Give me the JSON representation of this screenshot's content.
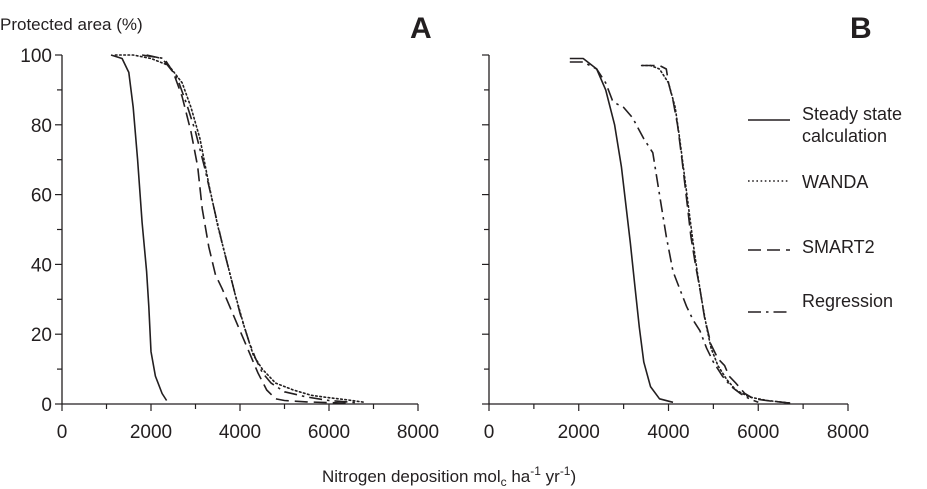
{
  "figure": {
    "ylabel": "Protected area (%)",
    "xlabel_main": "Nitrogen deposition mol",
    "xlabel_sub": "c",
    "xlabel_mid": " ha",
    "xlabel_sup1": "-1",
    "xlabel_mid2": " yr",
    "xlabel_sup2": "-1",
    "xlabel_end": ")"
  },
  "legend": [
    {
      "label_lines": [
        "Steady state",
        "calculation"
      ],
      "style": "solid"
    },
    {
      "label_lines": [
        "WANDA"
      ],
      "style": "dotted"
    },
    {
      "label_lines": [
        "SMART2"
      ],
      "style": "dashed"
    },
    {
      "label_lines": [
        "Regression"
      ],
      "style": "dashdot"
    }
  ],
  "chart_data": [
    {
      "type": "line",
      "panel": "A",
      "xlim": [
        0,
        8000
      ],
      "ylim": [
        0,
        100
      ],
      "xticks": [
        0,
        2000,
        4000,
        6000,
        8000
      ],
      "yticks": [
        0,
        20,
        40,
        60,
        80,
        100
      ],
      "xtick_labels": [
        "0",
        "2000",
        "4000",
        "6000",
        "8000"
      ],
      "ytick_labels": [
        "0",
        "20",
        "40",
        "60",
        "80",
        "100"
      ],
      "series": [
        {
          "name": "Steady state calculation",
          "style": "solid",
          "color": "#231f20",
          "x": [
            1100,
            1350,
            1500,
            1600,
            1700,
            1800,
            1900,
            1950,
            2000,
            2100,
            2250,
            2350
          ],
          "y": [
            100,
            99,
            95,
            85,
            70,
            52,
            38,
            28,
            15,
            8,
            3,
            1
          ]
        },
        {
          "name": "WANDA",
          "style": "dotted",
          "color": "#231f20",
          "x": [
            1200,
            1600,
            2000,
            2400,
            2700,
            2900,
            3100,
            3300,
            3500,
            3700,
            3900,
            4100,
            4300,
            4500,
            4800,
            5200,
            5600,
            6000,
            6400,
            6800
          ],
          "y": [
            100,
            100,
            99,
            97,
            92,
            85,
            76,
            63,
            51,
            41,
            31,
            22,
            14,
            10,
            6,
            4,
            2.5,
            1.8,
            1.2,
            0.5
          ]
        },
        {
          "name": "SMART2",
          "style": "dashed",
          "color": "#231f20",
          "x": [
            1900,
            2250,
            2500,
            2700,
            2900,
            3050,
            3150,
            3300,
            3450,
            3600,
            3800,
            4000,
            4200,
            4400,
            4600,
            4800,
            5000,
            5500,
            6000,
            6500
          ],
          "y": [
            100,
            99,
            95,
            88,
            78,
            68,
            56,
            45,
            37,
            33,
            27,
            21,
            15,
            9,
            4,
            1.5,
            1,
            0.6,
            0.4,
            0.2
          ]
        },
        {
          "name": "Regression",
          "style": "dashdot",
          "color": "#231f20",
          "x": [
            1800,
            2300,
            2600,
            2800,
            3000,
            3200,
            3400,
            3600,
            3800,
            4000,
            4200,
            4350,
            4500,
            4700,
            5000,
            5500,
            6000,
            6600
          ],
          "y": [
            100,
            99,
            93,
            86,
            78,
            68,
            57,
            46,
            36,
            26,
            18,
            13,
            9,
            6,
            3.5,
            2,
            1,
            0.4
          ]
        }
      ]
    },
    {
      "type": "line",
      "panel": "B",
      "xlim": [
        0,
        8000
      ],
      "ylim": [
        0,
        100
      ],
      "xticks": [
        0,
        2000,
        4000,
        6000,
        8000
      ],
      "yticks": [
        0,
        20,
        40,
        60,
        80,
        100
      ],
      "xtick_labels": [
        "0",
        "2000",
        "4000",
        "6000",
        "8000"
      ],
      "ytick_labels": [],
      "series": [
        {
          "name": "Steady state calculation",
          "style": "solid",
          "color": "#231f20",
          "x": [
            1800,
            2100,
            2400,
            2600,
            2800,
            2950,
            3050,
            3150,
            3250,
            3350,
            3450,
            3600,
            3800,
            4100
          ],
          "y": [
            99,
            99,
            96,
            90,
            80,
            68,
            57,
            46,
            34,
            22,
            12,
            5,
            1.5,
            0.5
          ]
        },
        {
          "name": "WANDA",
          "style": "dotted",
          "color": "#231f20",
          "x": [
            3400,
            3600,
            3800,
            4000,
            4150,
            4250,
            4350,
            4450,
            4550,
            4650,
            4750,
            4850,
            4950,
            5100,
            5300,
            5500,
            5800,
            6200,
            6700
          ],
          "y": [
            97,
            97,
            96,
            92,
            85,
            76,
            66,
            56,
            46,
            37,
            29,
            22,
            16,
            11,
            7,
            4,
            2,
            1,
            0.3
          ]
        },
        {
          "name": "SMART2",
          "style": "dashed",
          "color": "#231f20",
          "x": [
            3400,
            3800,
            3950,
            4000,
            4100,
            4200,
            4300,
            4400,
            4500,
            4600,
            4700,
            4800,
            4950,
            5100,
            5250,
            5350,
            5500,
            5700,
            5900,
            6300,
            6700
          ],
          "y": [
            97,
            97,
            96,
            92,
            87,
            80,
            70,
            59,
            48,
            40,
            33,
            25,
            17,
            13,
            11,
            8,
            6,
            3,
            1.5,
            0.8,
            0.3
          ]
        },
        {
          "name": "Regression",
          "style": "dashdot",
          "color": "#231f20",
          "x": [
            1800,
            2100,
            2400,
            2600,
            2750,
            2850,
            3000,
            3200,
            3450,
            3650,
            3800,
            3950,
            4100,
            4250,
            4400,
            4550,
            4700,
            4850,
            5000,
            5200,
            5400,
            5600,
            5800,
            6000
          ],
          "y": [
            98,
            98,
            96,
            92,
            87,
            86,
            85,
            82,
            76,
            72,
            60,
            48,
            38,
            33,
            28,
            24,
            21,
            16,
            12,
            8,
            5,
            3,
            1.5,
            0.5
          ]
        }
      ]
    }
  ]
}
